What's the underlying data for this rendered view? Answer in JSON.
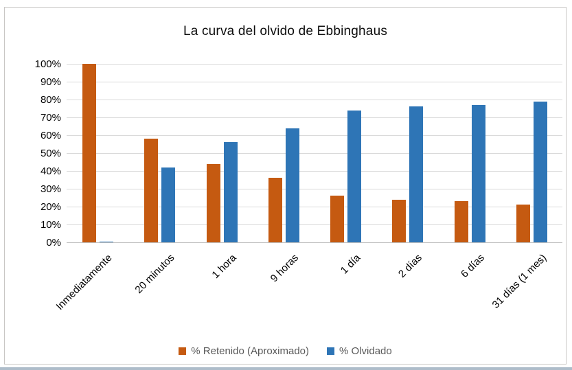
{
  "chart": {
    "title": "La curva del olvido de Ebbinghaus"
  },
  "chart_data": {
    "type": "bar",
    "title": "La curva del olvido de Ebbinghaus",
    "categories": [
      "Inmediatamente",
      "20 minutos",
      "1 hora",
      "9 horas",
      "1 día",
      "2 días",
      "6 días",
      "31 días (1 mes)"
    ],
    "series": [
      {
        "name": "% Retenido (Aproximado)",
        "color": "#C55A11",
        "values": [
          100,
          58,
          44,
          36,
          26,
          24,
          23,
          21
        ]
      },
      {
        "name": "% Olvidado",
        "color": "#2E75B6",
        "values": [
          0.5,
          42,
          56,
          64,
          74,
          76,
          77,
          79
        ]
      }
    ],
    "xlabel": "",
    "ylabel": "",
    "ylim": [
      0,
      100
    ],
    "y_ticks": [
      "100%",
      "90%",
      "80%",
      "70%",
      "60%",
      "50%",
      "40%",
      "30%",
      "20%",
      "10%",
      "0%"
    ],
    "grid": true,
    "legend_position": "bottom",
    "style": {
      "gridline_color": "#D9D9D9",
      "axis_line_color": "#BFBFBF",
      "title_color": "#0D0D0D",
      "tick_label_color": "#000000",
      "legend_text_color": "#595959",
      "frame_border_color": "#C9C7C5",
      "background": "#FFFFFF"
    }
  }
}
